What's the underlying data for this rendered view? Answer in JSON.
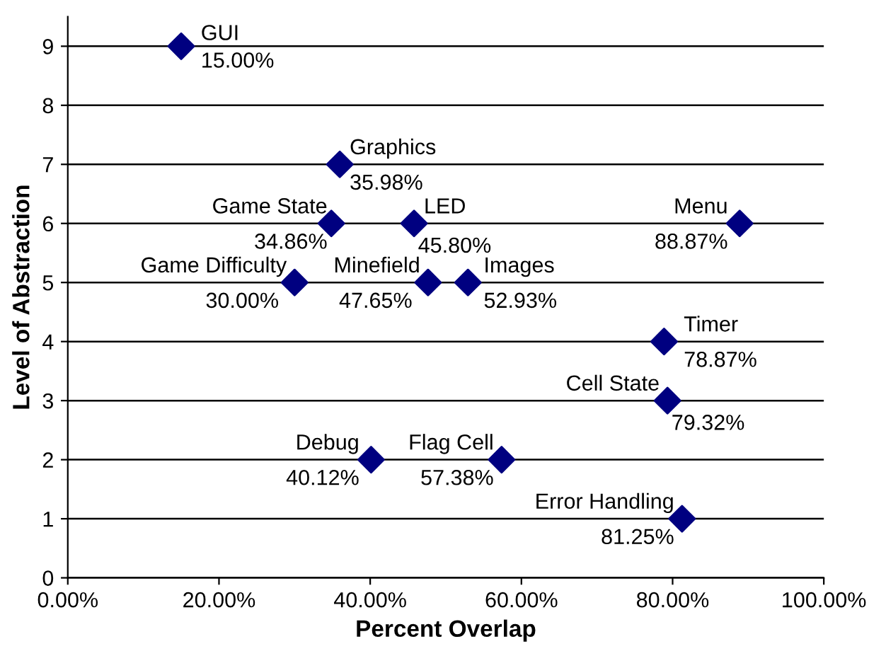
{
  "chart_data": {
    "type": "scatter",
    "xlabel": "Percent Overlap",
    "ylabel": "Level of Abstraction",
    "x": [
      15.0,
      35.98,
      34.86,
      45.8,
      88.87,
      30.0,
      47.65,
      52.93,
      78.87,
      79.32,
      40.12,
      57.38,
      81.25
    ],
    "series": [
      {
        "color": "#000080",
        "values": [
          9,
          7,
          6,
          6,
          6,
          5,
          5,
          5,
          4,
          3,
          2,
          2,
          1
        ]
      }
    ],
    "xlim": [
      0,
      100
    ],
    "ylim": [
      0,
      9.5
    ],
    "xticks": [
      {
        "value": 0,
        "label": "0.00%"
      },
      {
        "value": 20,
        "label": "20.00%"
      },
      {
        "value": 40,
        "label": "40.00%"
      },
      {
        "value": 60,
        "label": "60.00%"
      },
      {
        "value": 80,
        "label": "80.00%"
      },
      {
        "value": 100,
        "label": "100.00%"
      }
    ],
    "yticks": [
      0,
      1,
      2,
      3,
      4,
      5,
      6,
      7,
      8,
      9
    ],
    "grid": "y",
    "legend": false,
    "marker": "diamond",
    "annotations": [
      {
        "text": "GUI",
        "x": 15.0,
        "y": 9
      },
      {
        "text": "15.00%",
        "x": 15.0,
        "y": 9
      },
      {
        "text": "Graphics",
        "x": 35.98,
        "y": 7
      },
      {
        "text": "35.98%",
        "x": 35.98,
        "y": 7
      },
      {
        "text": "Game State",
        "x": 34.86,
        "y": 6
      },
      {
        "text": "34.86%",
        "x": 34.86,
        "y": 6
      },
      {
        "text": "LED",
        "x": 45.8,
        "y": 6
      },
      {
        "text": "45.80%",
        "x": 45.8,
        "y": 6
      },
      {
        "text": "Menu",
        "x": 88.87,
        "y": 6
      },
      {
        "text": "88.87%",
        "x": 88.87,
        "y": 6
      },
      {
        "text": "Game Difficulty",
        "x": 30.0,
        "y": 5
      },
      {
        "text": "30.00%",
        "x": 30.0,
        "y": 5
      },
      {
        "text": "Minefield",
        "x": 47.65,
        "y": 5
      },
      {
        "text": "47.65%",
        "x": 47.65,
        "y": 5
      },
      {
        "text": "Images",
        "x": 52.93,
        "y": 5
      },
      {
        "text": "52.93%",
        "x": 52.93,
        "y": 5
      },
      {
        "text": "Timer",
        "x": 78.87,
        "y": 4
      },
      {
        "text": "78.87%",
        "x": 78.87,
        "y": 4
      },
      {
        "text": "Cell State",
        "x": 79.32,
        "y": 3
      },
      {
        "text": "79.32%",
        "x": 79.32,
        "y": 3
      },
      {
        "text": "Debug",
        "x": 40.12,
        "y": 2
      },
      {
        "text": "40.12%",
        "x": 40.12,
        "y": 2
      },
      {
        "text": "Flag Cell",
        "x": 57.38,
        "y": 2
      },
      {
        "text": "57.38%",
        "x": 57.38,
        "y": 2
      },
      {
        "text": "Error Handling",
        "x": 81.25,
        "y": 1
      },
      {
        "text": "81.25%",
        "x": 81.25,
        "y": 1
      }
    ]
  }
}
